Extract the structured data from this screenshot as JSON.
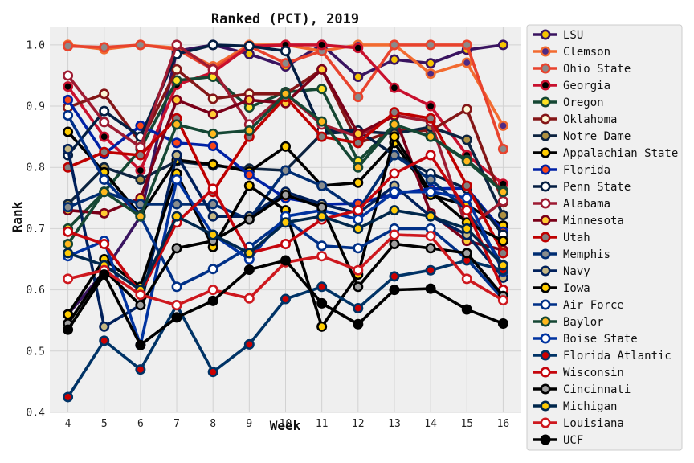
{
  "chart_data": {
    "type": "line",
    "title": "Ranked (PCT), 2019",
    "xlabel": "Week",
    "ylabel": "Rank",
    "x": [
      4,
      5,
      6,
      7,
      8,
      9,
      10,
      11,
      12,
      13,
      14,
      15,
      16
    ],
    "xlim": [
      3.5,
      16.5
    ],
    "ylim": [
      0.4,
      1.03
    ],
    "yticks": [
      "0.4",
      "0.5",
      "0.6",
      "0.7",
      "0.8",
      "0.9",
      "1.0"
    ],
    "grid": true,
    "legend_position": "outside-right",
    "series": [
      {
        "name": "LSU",
        "line_color": "#3a1460",
        "marker_face": "#f5c400",
        "values": [
          0.56,
          0.63,
          0.72,
          0.99,
          1.0,
          0.985,
          0.965,
          1.0,
          0.948,
          0.976,
          0.97,
          0.992,
          1.0
        ]
      },
      {
        "name": "Clemson",
        "line_color": "#f26b30",
        "marker_face": "#4e2a84",
        "values": [
          1.0,
          0.993,
          1.0,
          0.995,
          0.965,
          1.0,
          1.0,
          0.99,
          1.0,
          1.0,
          0.953,
          0.971,
          0.868
        ]
      },
      {
        "name": "Ohio State",
        "line_color": "#e8432d",
        "marker_face": "#8a8a8a",
        "values": [
          0.998,
          0.996,
          1.0,
          0.993,
          0.96,
          0.998,
          0.97,
          0.99,
          0.915,
          1.0,
          1.0,
          1.0,
          0.83
        ]
      },
      {
        "name": "Georgia",
        "line_color": "#c8102e",
        "marker_face": "#000000",
        "values": [
          0.932,
          0.85,
          0.795,
          0.935,
          0.955,
          0.998,
          1.0,
          1.0,
          0.995,
          0.93,
          0.9,
          0.82,
          0.773
        ]
      },
      {
        "name": "Oregon",
        "line_color": "#154733",
        "marker_face": "#fee123",
        "values": [
          0.7,
          0.76,
          0.83,
          0.942,
          0.948,
          0.898,
          0.923,
          0.928,
          0.81,
          0.87,
          0.85,
          0.812,
          0.762
        ]
      },
      {
        "name": "Oklahoma",
        "line_color": "#841617",
        "marker_face": "#fdf9d8",
        "values": [
          0.898,
          0.92,
          0.84,
          0.96,
          0.912,
          0.92,
          0.92,
          0.96,
          0.84,
          0.86,
          0.86,
          0.895,
          0.743
        ]
      },
      {
        "name": "Notre Dame",
        "line_color": "#0c2340",
        "marker_face": "#ae9142",
        "values": [
          0.74,
          0.8,
          0.78,
          0.81,
          0.803,
          0.798,
          0.795,
          0.855,
          0.859,
          0.855,
          0.866,
          0.845,
          0.722
        ]
      },
      {
        "name": "Appalachian State",
        "line_color": "#000000",
        "marker_face": "#ffcc00",
        "values": [
          0.858,
          0.792,
          0.722,
          0.812,
          0.805,
          0.793,
          0.834,
          0.77,
          0.775,
          0.84,
          0.755,
          0.738,
          0.705
        ]
      },
      {
        "name": "Florida",
        "line_color": "#0021a5",
        "marker_face": "#fa4616",
        "values": [
          0.91,
          0.822,
          0.868,
          0.84,
          0.835,
          0.788,
          0.75,
          0.74,
          0.741,
          0.757,
          0.765,
          0.766,
          0.695
        ]
      },
      {
        "name": "Penn State",
        "line_color": "#041e42",
        "marker_face": "#ffffff",
        "values": [
          0.82,
          0.892,
          0.85,
          0.985,
          1.0,
          0.998,
          0.99,
          0.86,
          0.86,
          0.82,
          0.79,
          0.765,
          0.69
        ]
      },
      {
        "name": "Alabama",
        "line_color": "#9e1b32",
        "marker_face": "#ffffff",
        "values": [
          0.95,
          0.874,
          0.833,
          1.0,
          0.96,
          0.87,
          0.92,
          0.87,
          0.85,
          0.885,
          0.875,
          0.7,
          0.745
        ]
      },
      {
        "name": "Minnesota",
        "line_color": "#7a0019",
        "marker_face": "#ffcc33",
        "values": [
          0.73,
          0.725,
          0.75,
          0.91,
          0.887,
          0.91,
          0.905,
          0.96,
          0.855,
          0.885,
          0.725,
          0.68,
          0.665
        ]
      },
      {
        "name": "Utah",
        "line_color": "#be0000",
        "marker_face": "#808080",
        "values": [
          0.8,
          0.825,
          0.82,
          0.88,
          0.76,
          0.85,
          0.915,
          0.85,
          0.84,
          0.89,
          0.88,
          0.77,
          0.66
        ]
      },
      {
        "name": "Memphis",
        "line_color": "#002d72",
        "marker_face": "#898d8d",
        "values": [
          0.735,
          0.76,
          0.74,
          0.74,
          0.74,
          0.715,
          0.795,
          0.77,
          0.73,
          0.82,
          0.78,
          0.73,
          0.64
        ]
      },
      {
        "name": "Navy",
        "line_color": "#00205b",
        "marker_face": "#c5b783",
        "values": [
          0.83,
          0.54,
          0.575,
          0.82,
          0.72,
          0.72,
          0.76,
          0.74,
          0.725,
          0.77,
          0.72,
          0.69,
          0.62
        ]
      },
      {
        "name": "Iowa",
        "line_color": "#000000",
        "marker_face": "#ffcd00",
        "values": [
          0.56,
          0.65,
          0.605,
          0.79,
          0.67,
          0.77,
          0.73,
          0.54,
          0.625,
          0.85,
          0.76,
          0.71,
          0.68
        ]
      },
      {
        "name": "Air Force",
        "line_color": "#003087",
        "marker_face": "#ffffff",
        "values": [
          0.885,
          0.78,
          0.72,
          0.605,
          0.634,
          0.67,
          0.715,
          0.672,
          0.668,
          0.7,
          0.7,
          0.65,
          0.585
        ]
      },
      {
        "name": "Baylor",
        "line_color": "#154734",
        "marker_face": "#ffb81c",
        "values": [
          0.675,
          0.76,
          0.72,
          0.87,
          0.855,
          0.86,
          0.92,
          0.875,
          0.8,
          0.87,
          0.85,
          0.81,
          0.76
        ]
      },
      {
        "name": "Boise State",
        "line_color": "#0033a0",
        "marker_face": "#ffffff",
        "values": [
          0.655,
          0.68,
          0.51,
          0.78,
          0.69,
          0.65,
          0.72,
          0.73,
          0.715,
          0.76,
          0.76,
          0.75,
          0.63
        ]
      },
      {
        "name": "Florida Atlantic",
        "line_color": "#003366",
        "marker_face": "#cc0000",
        "values": [
          0.425,
          0.517,
          0.47,
          0.575,
          0.466,
          0.511,
          0.585,
          0.605,
          0.57,
          0.622,
          0.632,
          0.648,
          0.632
        ]
      },
      {
        "name": "Wisconsin",
        "line_color": "#c5050c",
        "marker_face": "#ffffff",
        "values": [
          0.695,
          0.675,
          0.595,
          0.71,
          0.765,
          0.66,
          0.675,
          0.715,
          0.73,
          0.79,
          0.82,
          0.73,
          0.6
        ]
      },
      {
        "name": "Cincinnati",
        "line_color": "#000000",
        "marker_face": "#a0a0a0",
        "values": [
          0.545,
          0.632,
          0.575,
          0.668,
          0.68,
          0.715,
          0.755,
          0.735,
          0.605,
          0.675,
          0.668,
          0.66,
          0.59
        ]
      },
      {
        "name": "Michigan",
        "line_color": "#00274c",
        "marker_face": "#ffcb05",
        "values": [
          0.66,
          0.64,
          0.6,
          0.72,
          0.69,
          0.66,
          0.71,
          0.72,
          0.7,
          0.73,
          0.72,
          0.7,
          0.64
        ]
      },
      {
        "name": "Louisiana",
        "line_color": "#ce181e",
        "marker_face": "#ffffff",
        "values": [
          0.618,
          0.632,
          0.592,
          0.575,
          0.6,
          0.586,
          0.645,
          0.655,
          0.632,
          0.69,
          0.688,
          0.618,
          0.583
        ]
      },
      {
        "name": "UCF",
        "line_color": "#000000",
        "marker_face": "#000000",
        "values": [
          0.535,
          0.625,
          0.51,
          0.555,
          0.582,
          0.633,
          0.648,
          0.578,
          0.544,
          0.6,
          0.602,
          0.568,
          0.545
        ]
      }
    ]
  }
}
